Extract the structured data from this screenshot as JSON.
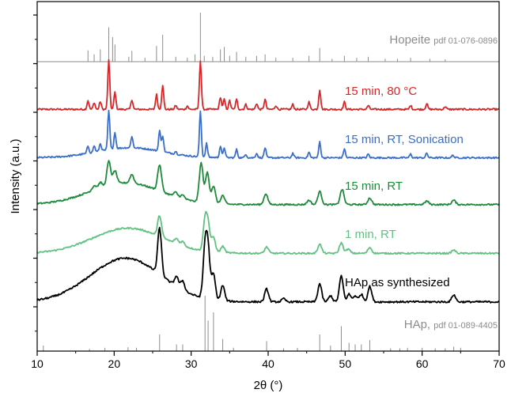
{
  "chart_data": {
    "type": "line",
    "xlabel": "2θ (°)",
    "ylabel": "Intensity (a.u.)",
    "xlim": [
      10,
      70
    ],
    "x_ticks": [
      10,
      20,
      30,
      40,
      50,
      60,
      70
    ],
    "y_ticks_shown": false,
    "grid": false,
    "legend": "inline labels beside each trace",
    "references": [
      {
        "name": "Hopeite",
        "code": "pdf 01-076-0896",
        "color": "#8c8c8c",
        "peaks": [
          [
            16.6,
            0.23
          ],
          [
            17.4,
            0.15
          ],
          [
            18.2,
            0.25
          ],
          [
            19.3,
            0.7
          ],
          [
            19.8,
            0.5
          ],
          [
            20.1,
            0.35
          ],
          [
            21.9,
            0.1
          ],
          [
            22.3,
            0.22
          ],
          [
            24.0,
            0.08
          ],
          [
            25.5,
            0.32
          ],
          [
            26.3,
            0.55
          ],
          [
            28.0,
            0.1
          ],
          [
            29.5,
            0.08
          ],
          [
            30.5,
            0.15
          ],
          [
            31.2,
            1.0
          ],
          [
            31.7,
            0.12
          ],
          [
            32.8,
            0.1
          ],
          [
            33.8,
            0.25
          ],
          [
            34.3,
            0.3
          ],
          [
            35.0,
            0.12
          ],
          [
            35.9,
            0.2
          ],
          [
            37.1,
            0.1
          ],
          [
            38.5,
            0.12
          ],
          [
            39.6,
            0.15
          ],
          [
            41.0,
            0.08
          ],
          [
            43.2,
            0.08
          ],
          [
            45.3,
            0.12
          ],
          [
            46.7,
            0.28
          ],
          [
            48.3,
            0.06
          ],
          [
            49.9,
            0.12
          ],
          [
            51.5,
            0.08
          ],
          [
            53.0,
            0.1
          ],
          [
            55.2,
            0.06
          ],
          [
            56.8,
            0.06
          ],
          [
            58.5,
            0.08
          ],
          [
            61.0,
            0.06
          ],
          [
            63.0,
            0.05
          ]
        ]
      },
      {
        "name": "HAp,",
        "code": "pdf 01-089-4405",
        "color": "#8c8c8c",
        "peaks": [
          [
            10.8,
            0.1
          ],
          [
            16.8,
            0.04
          ],
          [
            18.8,
            0.06
          ],
          [
            21.8,
            0.07
          ],
          [
            22.9,
            0.06
          ],
          [
            25.9,
            0.3
          ],
          [
            28.1,
            0.12
          ],
          [
            28.9,
            0.12
          ],
          [
            31.8,
            1.0
          ],
          [
            32.2,
            0.55
          ],
          [
            32.9,
            0.7
          ],
          [
            34.1,
            0.22
          ],
          [
            35.5,
            0.06
          ],
          [
            39.8,
            0.18
          ],
          [
            42.0,
            0.05
          ],
          [
            43.8,
            0.06
          ],
          [
            46.7,
            0.3
          ],
          [
            48.1,
            0.1
          ],
          [
            49.5,
            0.45
          ],
          [
            50.5,
            0.15
          ],
          [
            51.3,
            0.12
          ],
          [
            52.1,
            0.12
          ],
          [
            53.2,
            0.2
          ],
          [
            55.9,
            0.05
          ],
          [
            57.1,
            0.05
          ],
          [
            58.1,
            0.06
          ],
          [
            60.0,
            0.06
          ],
          [
            61.7,
            0.05
          ],
          [
            63.0,
            0.05
          ],
          [
            64.1,
            0.08
          ],
          [
            65.0,
            0.06
          ]
        ]
      }
    ],
    "series": [
      {
        "name": "15 min, 80 °C",
        "color": "#d62728",
        "baseline": 0.06,
        "hump": {
          "center": 22,
          "width": 6,
          "height": 0
        },
        "peaks": [
          [
            16.6,
            0.18
          ],
          [
            17.4,
            0.14
          ],
          [
            18.2,
            0.16
          ],
          [
            19.3,
            1.0
          ],
          [
            20.1,
            0.35
          ],
          [
            22.3,
            0.2
          ],
          [
            25.5,
            0.3
          ],
          [
            26.3,
            0.5
          ],
          [
            28.0,
            0.08
          ],
          [
            29.5,
            0.07
          ],
          [
            31.2,
            1.0
          ],
          [
            33.8,
            0.25
          ],
          [
            34.3,
            0.2
          ],
          [
            35.0,
            0.18
          ],
          [
            35.9,
            0.2
          ],
          [
            37.1,
            0.1
          ],
          [
            38.5,
            0.12
          ],
          [
            39.6,
            0.2
          ],
          [
            41.0,
            0.08
          ],
          [
            43.2,
            0.1
          ],
          [
            45.3,
            0.15
          ],
          [
            46.7,
            0.4
          ],
          [
            49.9,
            0.15
          ],
          [
            53.0,
            0.08
          ],
          [
            58.5,
            0.08
          ],
          [
            60.6,
            0.12
          ],
          [
            63.0,
            0.06
          ]
        ]
      },
      {
        "name": "15 min, RT, Sonication",
        "color": "#3a6ec8",
        "baseline": 0.06,
        "hump": {
          "center": 22,
          "width": 6,
          "height": 0.22
        },
        "peaks": [
          [
            16.6,
            0.16
          ],
          [
            17.4,
            0.14
          ],
          [
            18.2,
            0.16
          ],
          [
            19.3,
            0.85
          ],
          [
            20.1,
            0.35
          ],
          [
            22.3,
            0.25
          ],
          [
            25.9,
            0.45
          ],
          [
            26.3,
            0.35
          ],
          [
            28.0,
            0.06
          ],
          [
            31.2,
            1.0
          ],
          [
            32.0,
            0.3
          ],
          [
            33.8,
            0.25
          ],
          [
            34.3,
            0.22
          ],
          [
            35.9,
            0.18
          ],
          [
            37.1,
            0.08
          ],
          [
            38.5,
            0.1
          ],
          [
            39.6,
            0.22
          ],
          [
            43.2,
            0.1
          ],
          [
            45.3,
            0.12
          ],
          [
            46.7,
            0.35
          ],
          [
            49.9,
            0.2
          ],
          [
            53.0,
            0.08
          ],
          [
            58.5,
            0.08
          ],
          [
            60.6,
            0.1
          ],
          [
            64.0,
            0.06
          ]
        ]
      },
      {
        "name": "15 min, RT",
        "color": "#1e8a3c",
        "baseline": 0.06,
        "hump": {
          "center": 21.5,
          "width": 6.5,
          "height": 0.5
        },
        "peaks": [
          [
            17.4,
            0.1
          ],
          [
            18.2,
            0.12
          ],
          [
            19.3,
            0.55
          ],
          [
            20.1,
            0.3
          ],
          [
            22.3,
            0.2
          ],
          [
            25.9,
            0.6
          ],
          [
            28.0,
            0.1
          ],
          [
            28.9,
            0.08
          ],
          [
            31.3,
            0.9
          ],
          [
            32.1,
            0.7
          ],
          [
            32.9,
            0.4
          ],
          [
            34.1,
            0.2
          ],
          [
            39.7,
            0.25
          ],
          [
            45.3,
            0.1
          ],
          [
            46.7,
            0.3
          ],
          [
            49.6,
            0.35
          ],
          [
            53.2,
            0.15
          ],
          [
            60.6,
            0.08
          ],
          [
            64.1,
            0.1
          ]
        ]
      },
      {
        "name": "1 min, RT",
        "color": "#5fc281",
        "baseline": 0.05,
        "hump": {
          "center": 21.8,
          "width": 6.5,
          "height": 0.6
        },
        "peaks": [
          [
            25.9,
            0.5
          ],
          [
            28.1,
            0.12
          ],
          [
            28.9,
            0.1
          ],
          [
            31.8,
            0.7
          ],
          [
            32.2,
            0.6
          ],
          [
            32.9,
            0.35
          ],
          [
            34.1,
            0.15
          ],
          [
            39.8,
            0.15
          ],
          [
            46.7,
            0.22
          ],
          [
            49.5,
            0.25
          ],
          [
            50.4,
            0.1
          ],
          [
            53.2,
            0.14
          ],
          [
            64.1,
            0.08
          ]
        ]
      },
      {
        "name": "HAp as synthesized",
        "color": "#000000",
        "baseline": 0.05,
        "hump": {
          "center": 21.5,
          "width": 6.5,
          "height": 0.85
        },
        "peaks": [
          [
            25.9,
            0.9
          ],
          [
            28.1,
            0.2
          ],
          [
            28.9,
            0.18
          ],
          [
            31.8,
            0.95
          ],
          [
            32.2,
            0.9
          ],
          [
            32.9,
            0.5
          ],
          [
            34.1,
            0.3
          ],
          [
            39.8,
            0.25
          ],
          [
            42.0,
            0.06
          ],
          [
            46.7,
            0.35
          ],
          [
            48.1,
            0.12
          ],
          [
            49.5,
            0.5
          ],
          [
            50.5,
            0.15
          ],
          [
            51.3,
            0.12
          ],
          [
            52.1,
            0.15
          ],
          [
            53.2,
            0.3
          ],
          [
            64.1,
            0.14
          ]
        ]
      }
    ]
  }
}
